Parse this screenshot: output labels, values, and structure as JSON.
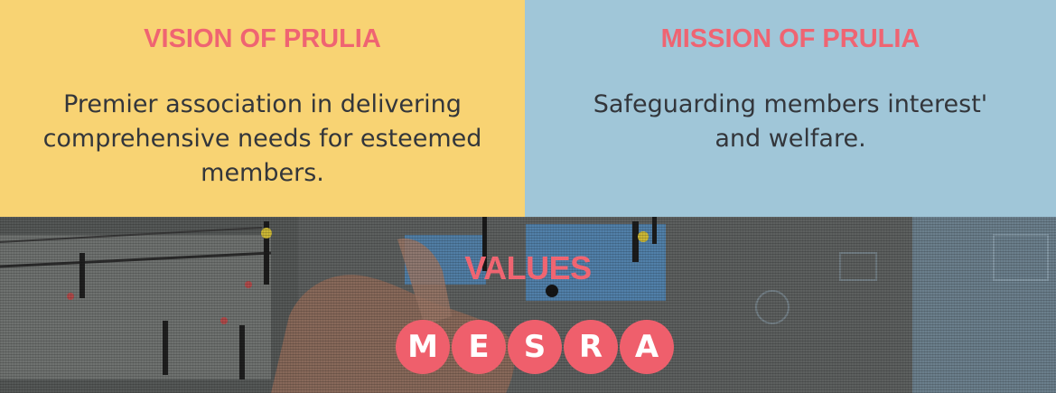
{
  "vision": {
    "title": "VISION OF PRULIA",
    "text": "Premier association in delivering comprehensive needs for esteemed members."
  },
  "mission": {
    "title": "MISSION OF PRULIA",
    "text": "Safeguarding members interest' and welfare."
  },
  "values": {
    "title": "VALUES",
    "letters": [
      "M",
      "E",
      "S",
      "R",
      "A"
    ]
  },
  "colors": {
    "vision_bg": "#f8d373",
    "mission_bg": "#a0c6d8",
    "accent": "#ef6472",
    "body_text": "#33363b"
  }
}
